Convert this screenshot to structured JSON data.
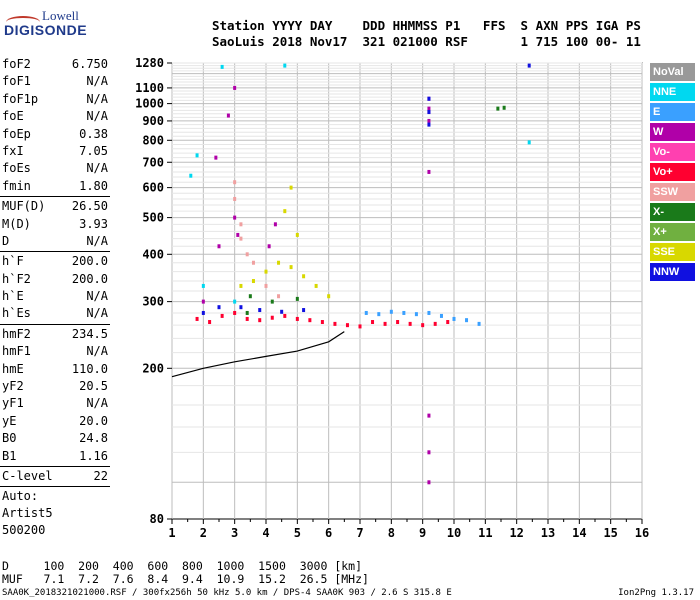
{
  "logo": {
    "brand": "Lowell",
    "product": "DIGISONDE"
  },
  "header": {
    "line1": "Station YYYY DAY    DDD HHMMSS P1   FFS  S AXN PPS IGA PS",
    "line2": "SaoLuis 2018 Nov17  321 021000 RSF       1 715 100 00- 11"
  },
  "params": {
    "group1": [
      {
        "label": "foF2",
        "value": "6.750"
      },
      {
        "label": "foF1",
        "value": "N/A"
      },
      {
        "label": "foF1p",
        "value": "N/A"
      },
      {
        "label": "foE",
        "value": "N/A"
      },
      {
        "label": "foEp",
        "value": "0.38"
      },
      {
        "label": "fxI",
        "value": "7.05"
      },
      {
        "label": "foEs",
        "value": "N/A"
      },
      {
        "label": "fmin",
        "value": "1.80"
      }
    ],
    "group2": [
      {
        "label": "MUF(D)",
        "value": "26.50"
      },
      {
        "label": "M(D)",
        "value": "3.93"
      },
      {
        "label": "D",
        "value": "N/A"
      }
    ],
    "group3": [
      {
        "label": "h`F",
        "value": "200.0"
      },
      {
        "label": "h`F2",
        "value": "200.0"
      },
      {
        "label": "h`E",
        "value": "N/A"
      },
      {
        "label": "h`Es",
        "value": "N/A"
      }
    ],
    "group4": [
      {
        "label": "hmF2",
        "value": "234.5"
      },
      {
        "label": "hmF1",
        "value": "N/A"
      },
      {
        "label": "hmE",
        "value": "110.0"
      },
      {
        "label": "yF2",
        "value": "20.5"
      },
      {
        "label": "yF1",
        "value": "N/A"
      },
      {
        "label": "yE",
        "value": "20.0"
      },
      {
        "label": "B0",
        "value": "24.8"
      },
      {
        "label": "B1",
        "value": "1.16"
      }
    ],
    "group5": [
      {
        "label": "C-level",
        "value": "22"
      }
    ],
    "auto": [
      "Auto:",
      "Artist5",
      "500200"
    ]
  },
  "legend": [
    {
      "label": "NoVal",
      "color": "#999999"
    },
    {
      "label": "NNE",
      "color": "#00d8f0"
    },
    {
      "label": "E",
      "color": "#3aa0ff"
    },
    {
      "label": "W",
      "color": "#b000a8"
    },
    {
      "label": "Vo-",
      "color": "#ff40b0"
    },
    {
      "label": "Vo+",
      "color": "#ff0030"
    },
    {
      "label": "SSW",
      "color": "#f0a0a0"
    },
    {
      "label": "X-",
      "color": "#1a7a1a"
    },
    {
      "label": "X+",
      "color": "#70b040"
    },
    {
      "label": "SSE",
      "color": "#d8d800"
    },
    {
      "label": "NNW",
      "color": "#1010e0"
    }
  ],
  "muf_table": {
    "line1": "D     100  200  400  600  800  1000  1500  3000 [km]",
    "line2": "MUF   7.1  7.2  7.6  8.4  9.4  10.9  15.2  26.5 [MHz]"
  },
  "footer": "SAA0K_2018321021000.RSF / 300fx256h 50 kHz 5.0 km / DPS-4 SAA0K 903 / 2.6 S 315.8 E",
  "version": "Ion2Png 1.3.17",
  "chart_data": {
    "type": "scatter",
    "title": "",
    "xlabel": "",
    "ylabel": "",
    "xlim": [
      1,
      16
    ],
    "ylim": [
      80,
      1280
    ],
    "y_scale": "log",
    "x_ticks": [
      "1",
      "2",
      "3",
      "4",
      "5",
      "6",
      "7",
      "8",
      "9",
      "10",
      "11",
      "12",
      "13",
      "14",
      "15",
      "16"
    ],
    "y_ticks": [
      "80",
      "200",
      "300",
      "400",
      "500",
      "600",
      "700",
      "800",
      "900",
      "1000",
      "1100",
      "1280"
    ],
    "grid": true,
    "series": [
      {
        "color": "#ff0030",
        "points": [
          [
            1.8,
            270
          ],
          [
            2.2,
            265
          ],
          [
            2.6,
            275
          ],
          [
            3.0,
            280
          ],
          [
            3.4,
            270
          ],
          [
            3.8,
            268
          ],
          [
            4.2,
            272
          ],
          [
            4.6,
            275
          ],
          [
            5.0,
            270
          ],
          [
            5.4,
            268
          ],
          [
            5.8,
            265
          ],
          [
            6.2,
            262
          ],
          [
            6.6,
            260
          ],
          [
            7.0,
            258
          ],
          [
            7.4,
            265
          ],
          [
            7.8,
            262
          ],
          [
            8.2,
            265
          ],
          [
            8.6,
            262
          ],
          [
            9.0,
            260
          ],
          [
            9.4,
            262
          ],
          [
            9.8,
            265
          ]
        ]
      },
      {
        "color": "#3aa0ff",
        "points": [
          [
            7.2,
            280
          ],
          [
            7.6,
            278
          ],
          [
            8.0,
            282
          ],
          [
            8.4,
            280
          ],
          [
            8.8,
            278
          ],
          [
            9.2,
            280
          ],
          [
            9.6,
            275
          ],
          [
            10.0,
            270
          ],
          [
            10.4,
            268
          ],
          [
            10.8,
            262
          ]
        ]
      },
      {
        "color": "#d8d800",
        "points": [
          [
            3.2,
            330
          ],
          [
            3.6,
            340
          ],
          [
            4.0,
            360
          ],
          [
            4.4,
            380
          ],
          [
            4.8,
            370
          ],
          [
            5.2,
            350
          ],
          [
            5.6,
            330
          ],
          [
            6.0,
            310
          ],
          [
            4.8,
            600
          ],
          [
            4.6,
            520
          ],
          [
            5.0,
            450
          ]
        ]
      },
      {
        "color": "#b000a8",
        "points": [
          [
            2.0,
            300
          ],
          [
            3.0,
            500
          ],
          [
            3.1,
            450
          ],
          [
            2.5,
            420
          ],
          [
            4.3,
            480
          ],
          [
            4.1,
            420
          ],
          [
            9.2,
            1030
          ],
          [
            9.2,
            970
          ],
          [
            9.2,
            950
          ],
          [
            9.2,
            900
          ],
          [
            9.2,
            660
          ],
          [
            9.2,
            150
          ],
          [
            9.2,
            120
          ],
          [
            9.2,
            100
          ],
          [
            3.0,
            1100
          ],
          [
            2.8,
            930
          ],
          [
            2.4,
            720
          ]
        ]
      },
      {
        "color": "#1010e0",
        "points": [
          [
            2.0,
            280
          ],
          [
            2.5,
            290
          ],
          [
            3.2,
            290
          ],
          [
            3.8,
            285
          ],
          [
            4.5,
            282
          ],
          [
            5.2,
            285
          ],
          [
            9.2,
            1030
          ],
          [
            9.2,
            950
          ],
          [
            9.2,
            880
          ],
          [
            12.4,
            1260
          ]
        ]
      },
      {
        "color": "#1a7a1a",
        "points": [
          [
            3.5,
            310
          ],
          [
            4.2,
            300
          ],
          [
            5.0,
            305
          ],
          [
            11.4,
            970
          ],
          [
            11.6,
            975
          ],
          [
            3.4,
            280
          ]
        ]
      },
      {
        "color": "#f0a0a0",
        "points": [
          [
            3.0,
            620
          ],
          [
            3.0,
            560
          ],
          [
            3.2,
            480
          ],
          [
            3.2,
            440
          ],
          [
            3.4,
            400
          ],
          [
            3.6,
            380
          ],
          [
            4.0,
            330
          ],
          [
            4.4,
            310
          ]
        ]
      },
      {
        "color": "#00d8f0",
        "points": [
          [
            1.6,
            645
          ],
          [
            1.8,
            730
          ],
          [
            2.6,
            1250
          ],
          [
            12.4,
            790
          ],
          [
            4.6,
            1260
          ],
          [
            2.0,
            330
          ],
          [
            3.0,
            300
          ]
        ]
      }
    ],
    "trace": {
      "points": [
        [
          1.0,
          190
        ],
        [
          2.0,
          200
        ],
        [
          3.0,
          208
        ],
        [
          4.0,
          215
        ],
        [
          5.0,
          222
        ],
        [
          6.0,
          235
        ],
        [
          6.5,
          250
        ]
      ]
    }
  }
}
